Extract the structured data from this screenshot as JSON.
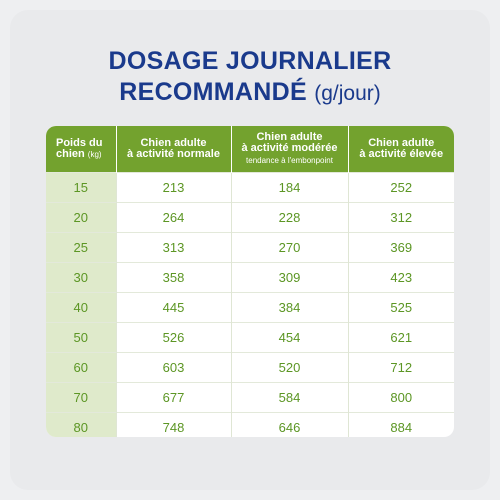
{
  "title": {
    "line1": "DOSAGE JOURNALIER",
    "line2": "RECOMMANDÉ",
    "unit": "(g/jour)"
  },
  "table": {
    "headers": {
      "weight_main": "Poids du",
      "weight_main2": "chien",
      "weight_unit": "(kg)",
      "col1_l1": "Chien adulte",
      "col1_l2": "à activité normale",
      "col2_l1": "Chien adulte",
      "col2_l2": "à activité modérée",
      "col2_sub": "tendance à l'embonpoint",
      "col3_l1": "Chien adulte",
      "col3_l2": "à activité élevée"
    },
    "rows": [
      [
        "15",
        "213",
        "184",
        "252"
      ],
      [
        "20",
        "264",
        "228",
        "312"
      ],
      [
        "25",
        "313",
        "270",
        "369"
      ],
      [
        "30",
        "358",
        "309",
        "423"
      ],
      [
        "40",
        "445",
        "384",
        "525"
      ],
      [
        "50",
        "526",
        "454",
        "621"
      ],
      [
        "60",
        "603",
        "520",
        "712"
      ],
      [
        "70",
        "677",
        "584",
        "800"
      ],
      [
        "80",
        "748",
        "646",
        "884"
      ]
    ]
  },
  "colors": {
    "title": "#1a3a8c",
    "header_bg": "#73a22e",
    "weight_col_bg": "#dfeacb",
    "value_text": "#5c9624"
  }
}
